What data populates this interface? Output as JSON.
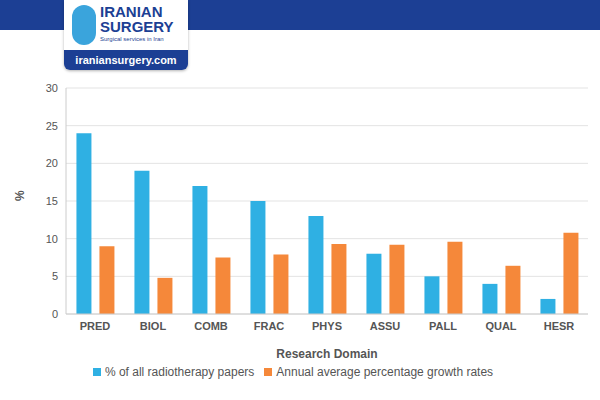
{
  "chart_data": {
    "type": "bar",
    "annotations": [
      "IRANIAN",
      "SURGERY",
      "Surgical services in Iran",
      "iraniansurgery.com"
    ],
    "x_label": "Research Domain",
    "y_label": "%",
    "categories": [
      "PRED",
      "BIOL",
      "COMB",
      "FRAC",
      "PHYS",
      "ASSU",
      "PALL",
      "QUAL",
      "HESR"
    ],
    "series": [
      {
        "name": "% of all radiotherapy papers",
        "color": "#2fb0e3",
        "values": [
          24,
          19,
          17,
          15,
          13,
          8,
          5,
          4,
          2
        ]
      },
      {
        "name": "Annual average percentage growth rates",
        "color": "#f5883a",
        "values": [
          9,
          4.8,
          7.5,
          7.9,
          9.3,
          9.2,
          9.6,
          6.4,
          10.8
        ]
      }
    ],
    "ylim": [
      0,
      30
    ],
    "yticks": [
      0,
      5,
      10,
      15,
      20,
      25,
      30
    ],
    "grid": true,
    "legend": "bottom"
  }
}
